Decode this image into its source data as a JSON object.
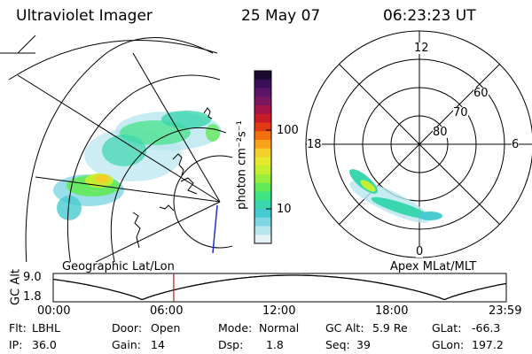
{
  "header": {
    "instrument": "Ultraviolet Imager",
    "date": "25 May 07",
    "time": "06:23:23 UT"
  },
  "colorbar": {
    "unit_label": "photon cm⁻²s⁻¹",
    "ticks": [
      "100",
      "10"
    ],
    "colors": [
      "#1a0a2e",
      "#3b0f57",
      "#5a1468",
      "#7a1560",
      "#a01545",
      "#c81b2a",
      "#e03a14",
      "#f27010",
      "#f7a31a",
      "#f3cf2b",
      "#e6ea2e",
      "#c5ee30",
      "#98ee3c",
      "#62ea58",
      "#3fe383",
      "#3ad6ad",
      "#47cbd0",
      "#7fd6e4",
      "#b8e6ef",
      "#e4f2f6"
    ]
  },
  "polar": {
    "hour_labels": [
      "12",
      "18",
      "6",
      "0"
    ],
    "lat_labels": [
      "60",
      "70",
      "80"
    ]
  },
  "map_labels": {
    "left": "Geographic Lat/Lon",
    "right": "Apex MLat/MLT"
  },
  "altitude_plot": {
    "axis_title": "GC Alt",
    "y_ticks": [
      "9.0",
      "1.8"
    ],
    "x_ticks": [
      "00:00",
      "06:00",
      "12:00",
      "18:00",
      "23:59"
    ],
    "current_time_fraction": 0.266
  },
  "info": {
    "filter_label": "Flt:",
    "filter_value": "LBHL",
    "ip_label": "IP:",
    "ip_value": "36.0",
    "door_label": "Door:",
    "door_value": "Open",
    "gain_label": "Gain:",
    "gain_value": "14",
    "mode_label": "Mode:",
    "mode_value": "Normal",
    "dsp_label": "Dsp:",
    "dsp_value": "1.8",
    "gcalt_label": "GC Alt:",
    "gcalt_value": "5.9 Re",
    "seq_label": "Seq:",
    "seq_value": "39",
    "glat_label": "GLat:",
    "glat_value": "-66.3",
    "glon_label": "GLon:",
    "glon_value": "197.2"
  }
}
